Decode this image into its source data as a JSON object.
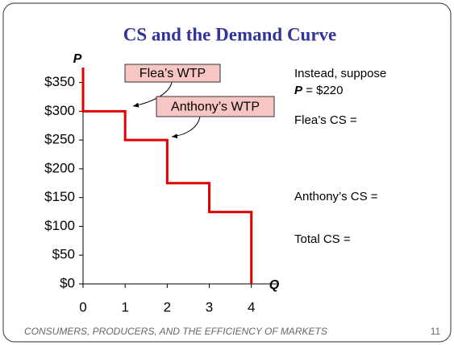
{
  "chart_data": {
    "type": "step",
    "title": "CS and the Demand Curve",
    "y_label": "P",
    "x_label": "Q",
    "values": [
      300,
      250,
      175,
      125
    ],
    "color": "#e00000",
    "xlim": [
      0,
      4.6
    ],
    "xticks": [
      0,
      1,
      2,
      3,
      4
    ],
    "ylim": [
      0,
      376
    ],
    "yticks": [
      {
        "value": 0,
        "label": "$0"
      },
      {
        "value": 50,
        "label": "$50"
      },
      {
        "value": 100,
        "label": "$100"
      },
      {
        "value": 150,
        "label": "$150"
      },
      {
        "value": 200,
        "label": "$200"
      },
      {
        "value": 250,
        "label": "$250"
      },
      {
        "value": 300,
        "label": "$300"
      },
      {
        "value": 350,
        "label": "$350"
      }
    ],
    "annotations": [
      "Flea’s WTP",
      "Anthony’s WTP"
    ]
  },
  "side_text": {
    "line1": "Instead, suppose",
    "price_var": "P",
    "price_text": "= $220",
    "flea": "Flea’s CS =",
    "anthony": "Anthony’s CS =",
    "total": "Total CS ="
  },
  "footer": {
    "text": "CONSUMERS, PRODUCERS, AND THE EFFICIENCY OF MARKETS",
    "page": "11"
  }
}
